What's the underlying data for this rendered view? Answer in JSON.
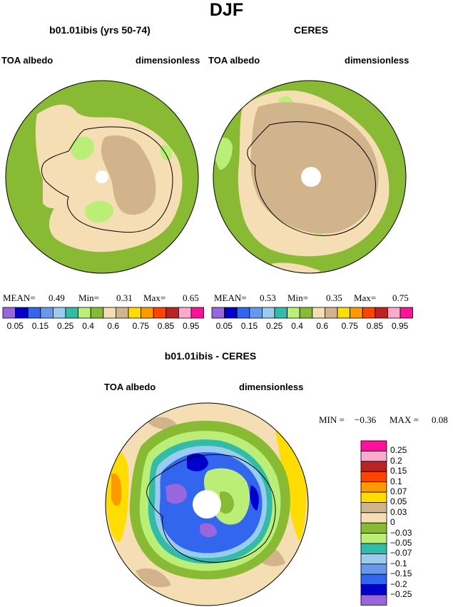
{
  "title": "DJF",
  "panels": [
    {
      "id": "model",
      "heading": "b01.01ibis (yrs 50-74)",
      "left_label": "TOA albedo",
      "right_label": "dimensionless",
      "stats": {
        "mean_label": "MEAN=",
        "mean": "0.49",
        "min_label": "Min=",
        "min": "0.31",
        "max_label": "Max=",
        "max": "0.65"
      }
    },
    {
      "id": "ceres",
      "heading": "CERES",
      "left_label": "TOA albedo",
      "right_label": "dimensionless",
      "stats": {
        "mean_label": "MEAN=",
        "mean": "0.53",
        "min_label": "Min=",
        "min": "0.35",
        "max_label": "Max=",
        "max": "0.75"
      }
    }
  ],
  "abs_colorbar": {
    "colors": [
      "#9966dd",
      "#0000cc",
      "#3366ee",
      "#6699ee",
      "#99ccee",
      "#33bbaa",
      "#bbee77",
      "#88bb33",
      "#f5deb3",
      "#d2b48c",
      "#ffdd00",
      "#ff9900",
      "#ff4400",
      "#bb2222",
      "#ffaacc",
      "#ff1199"
    ],
    "tick_labels": [
      "0.05",
      "0.15",
      "0.25",
      "0.4",
      "0.6",
      "0.75",
      "0.85",
      "0.95"
    ]
  },
  "diff": {
    "heading": "b01.01ibis - CERES",
    "left_label": "TOA albedo",
    "right_label": "dimensionless",
    "stats": {
      "min_label": "MIN =",
      "min": "-0.36",
      "max_label": "MAX =",
      "max": "0.08"
    },
    "colorbar": {
      "colors": [
        "#ff1199",
        "#ffaacc",
        "#bb2222",
        "#ff4400",
        "#ff9900",
        "#ffdd00",
        "#d2b48c",
        "#f5deb3",
        "#88bb33",
        "#bbee77",
        "#33bbaa",
        "#99ccee",
        "#6699ee",
        "#3366ee",
        "#0000cc",
        "#9966dd"
      ],
      "labels": [
        "0.25",
        "0.2",
        "0.15",
        "0.1",
        "0.07",
        "0.05",
        "0.03",
        "0",
        "-0.03",
        "-0.05",
        "-0.07",
        "-0.1",
        "-0.15",
        "-0.2",
        "-0.25"
      ]
    }
  },
  "map_colors": {
    "ocean_green": "#88bb33",
    "light_green": "#bbee77",
    "wheat": "#f5deb3",
    "tan": "#d2b48c",
    "yellow": "#ffdd00",
    "orange": "#ff9900",
    "teal": "#33bbaa",
    "light_blue": "#99ccee",
    "mid_blue": "#6699ee",
    "blue": "#3366ee",
    "dark_blue": "#0000cc",
    "purple": "#9966dd"
  }
}
